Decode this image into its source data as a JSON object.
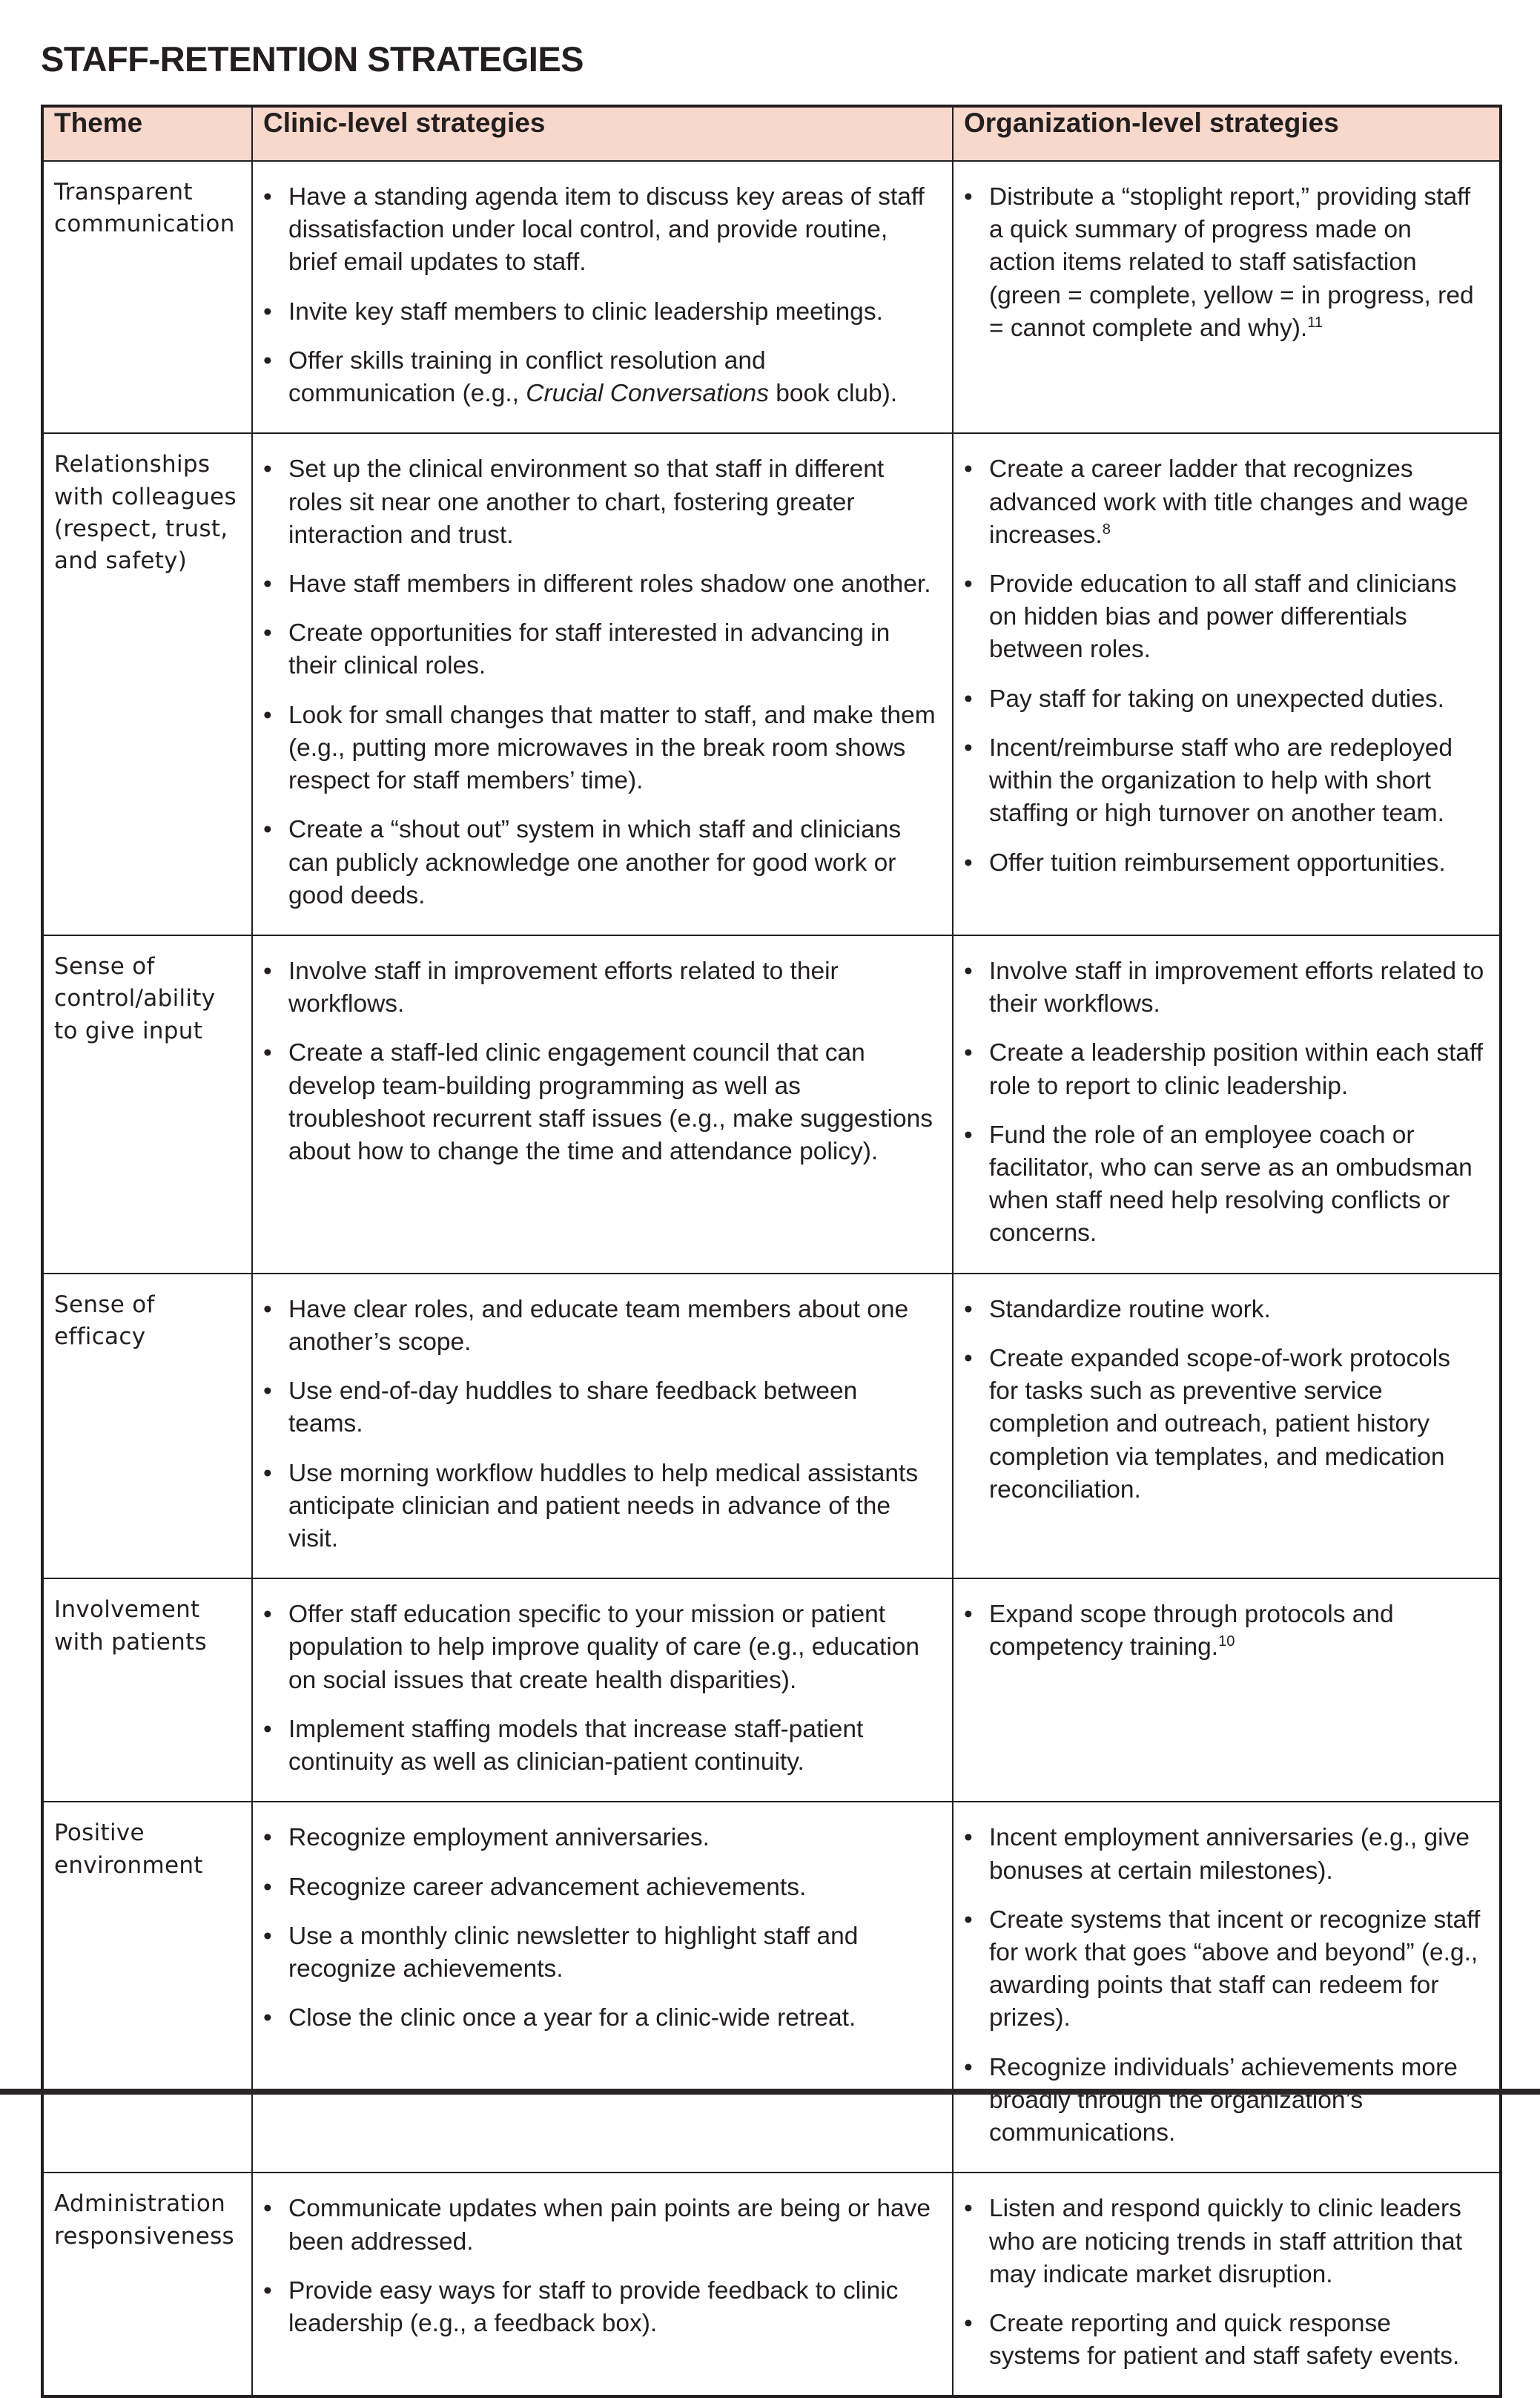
{
  "page": {
    "title": "STAFF-RETENTION STRATEGIES"
  },
  "colors": {
    "header_bg": "#f9d8cc",
    "border": "#231f20",
    "text": "#231f20"
  },
  "table": {
    "bullet_glyph": "•",
    "headers": [
      "Theme",
      "Clinic-level strategies",
      "Organization-level strategies"
    ],
    "rows": [
      {
        "theme": "Transparent communication",
        "clinic": [
          [
            {
              "text": "Have a standing agenda item to discuss key areas of staff dissatisfaction under local control, and provide routine, brief email updates to staff.",
              "style": "normal"
            }
          ],
          [
            {
              "text": "Invite key staff members to clinic leadership meetings.",
              "style": "normal"
            }
          ],
          [
            {
              "text": "Offer skills training in conflict resolution and communication (e.g., ",
              "style": "normal"
            },
            {
              "text": "Crucial Conversations",
              "style": "italic"
            },
            {
              "text": " book club).",
              "style": "normal"
            }
          ]
        ],
        "org": [
          [
            {
              "text": "Distribute a “stoplight report,” providing staff a quick summary of progress made on action items related to staff satisfaction (green = complete, yellow = in progress, red = cannot complete and why).",
              "style": "normal"
            },
            {
              "text": "11",
              "style": "sup"
            }
          ]
        ]
      },
      {
        "theme": "Relationships with colleagues (respect, trust, and safety)",
        "clinic": [
          [
            {
              "text": "Set up the clinical environment so that staff in different roles sit near one another to chart, fostering greater interaction and trust.",
              "style": "normal"
            }
          ],
          [
            {
              "text": "Have staff members in different roles shadow one another.",
              "style": "normal"
            }
          ],
          [
            {
              "text": "Create opportunities for staff interested in advancing in their clinical roles.",
              "style": "normal"
            }
          ],
          [
            {
              "text": "Look for small changes that matter to staff, and make them (e.g., putting more microwaves in the break room shows respect for staff members’ time).",
              "style": "normal"
            }
          ],
          [
            {
              "text": "Create a “shout out” system in which staff and clinicians can publicly acknowledge one another for good work or good deeds.",
              "style": "normal"
            }
          ]
        ],
        "org": [
          [
            {
              "text": "Create a career ladder that recognizes advanced work with title changes and wage increases.",
              "style": "normal"
            },
            {
              "text": "8",
              "style": "sup"
            }
          ],
          [
            {
              "text": "Provide education to all staff and clinicians on hidden bias and power differentials between roles.",
              "style": "normal"
            }
          ],
          [
            {
              "text": "Pay staff for taking on unexpected duties.",
              "style": "normal"
            }
          ],
          [
            {
              "text": "Incent/reimburse staff who are redeployed within the organization to help with short staffing or high turnover on another team.",
              "style": "normal"
            }
          ],
          [
            {
              "text": "Offer tuition reimbursement opportunities.",
              "style": "normal"
            }
          ]
        ]
      },
      {
        "theme": "Sense of control/ability to give input",
        "clinic": [
          [
            {
              "text": "Involve staff in improvement efforts related to their workflows.",
              "style": "normal"
            }
          ],
          [
            {
              "text": "Create a staff-led clinic engagement council that can develop team-building programming as well as troubleshoot recurrent staff issues (e.g., make suggestions about how to change the time and attendance policy).",
              "style": "normal"
            }
          ]
        ],
        "org": [
          [
            {
              "text": "Involve staff in improvement efforts related to their workflows.",
              "style": "normal"
            }
          ],
          [
            {
              "text": "Create a leadership position within each staff role to report to clinic leadership.",
              "style": "normal"
            }
          ],
          [
            {
              "text": "Fund the role of an employee coach or facilitator, who can serve as an ombudsman when staff need help resolving conflicts or concerns.",
              "style": "normal"
            }
          ]
        ]
      },
      {
        "theme": "Sense of efficacy",
        "clinic": [
          [
            {
              "text": "Have clear roles, and educate team members about one another’s scope.",
              "style": "normal"
            }
          ],
          [
            {
              "text": "Use end-of-day huddles to share feedback between teams.",
              "style": "normal"
            }
          ],
          [
            {
              "text": "Use morning workflow huddles to help medical assistants anticipate clinician and patient needs in advance of the visit.",
              "style": "normal"
            }
          ]
        ],
        "org": [
          [
            {
              "text": "Standardize routine work.",
              "style": "normal"
            }
          ],
          [
            {
              "text": "Create expanded scope-of-work protocols for tasks such as preventive service completion and outreach, patient history completion via templates, and medication reconciliation.",
              "style": "normal"
            }
          ]
        ]
      },
      {
        "theme": "Involvement with patients",
        "clinic": [
          [
            {
              "text": "Offer staff education specific to your mission or patient population to help improve quality of care (e.g., education on social issues that create health disparities).",
              "style": "normal"
            }
          ],
          [
            {
              "text": "Implement staffing models that increase staff-patient continuity as well as clinician-patient continuity.",
              "style": "normal"
            }
          ]
        ],
        "org": [
          [
            {
              "text": "Expand scope through protocols and competency training.",
              "style": "normal"
            },
            {
              "text": "10",
              "style": "sup"
            }
          ]
        ]
      },
      {
        "theme": "Positive environment",
        "clinic": [
          [
            {
              "text": "Recognize employment anniversaries.",
              "style": "normal"
            }
          ],
          [
            {
              "text": "Recognize career advancement achievements.",
              "style": "normal"
            }
          ],
          [
            {
              "text": "Use a monthly clinic newsletter to highlight staff and recognize achievements.",
              "style": "normal"
            }
          ],
          [
            {
              "text": "Close the clinic once a year for a clinic-wide retreat.",
              "style": "normal"
            }
          ]
        ],
        "org": [
          [
            {
              "text": "Incent employment anniversaries (e.g., give bonuses at certain milestones).",
              "style": "normal"
            }
          ],
          [
            {
              "text": "Create systems that incent or recognize staff for work that goes “above and beyond” (e.g., awarding points that staff can redeem for prizes).",
              "style": "normal"
            }
          ],
          [
            {
              "text": "Recognize individuals’ achievements more broadly through the organization’s communications.",
              "style": "normal"
            }
          ]
        ]
      },
      {
        "theme": "Administration responsiveness",
        "clinic": [
          [
            {
              "text": "Communicate updates when pain points are being or have been addressed.",
              "style": "normal"
            }
          ],
          [
            {
              "text": "Provide easy ways for staff to provide feedback to clinic leadership (e.g., a feedback box).",
              "style": "normal"
            }
          ]
        ],
        "org": [
          [
            {
              "text": "Listen and respond quickly to clinic leaders who are noticing trends in staff attrition that may indicate market disruption.",
              "style": "normal"
            }
          ],
          [
            {
              "text": "Create reporting and quick response systems for patient and staff safety events.",
              "style": "normal"
            }
          ]
        ]
      }
    ]
  }
}
